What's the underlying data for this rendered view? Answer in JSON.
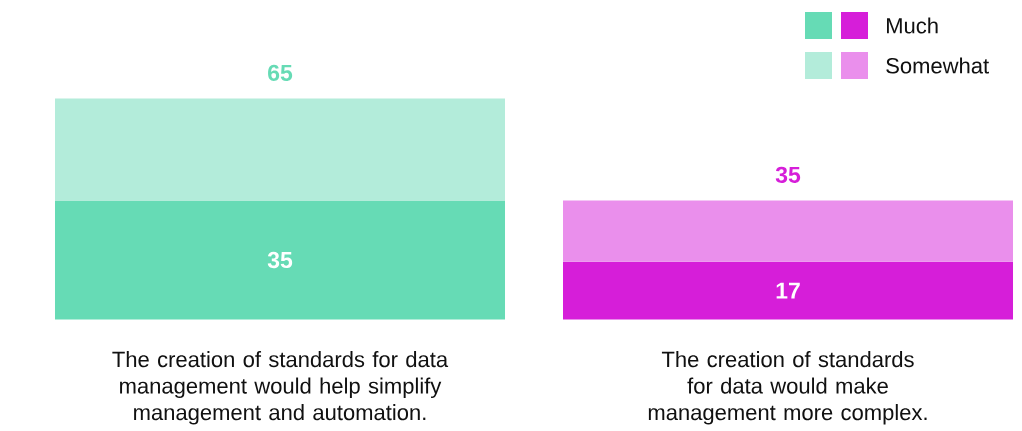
{
  "chart_data": {
    "type": "bar",
    "stacked": true,
    "categories": [
      "The creation of standards for data management would help simplify management and automation.",
      "The creation of standards for data would make management more complex."
    ],
    "series": [
      {
        "name": "Much",
        "colors": [
          "#66dbb5",
          "#d61ed9"
        ],
        "values": [
          35,
          17
        ],
        "value_labels": [
          "35",
          "17"
        ]
      },
      {
        "name": "Somewhat",
        "colors": [
          "#b3ecda",
          "#ea8fec"
        ],
        "values": [
          30,
          18
        ]
      }
    ],
    "totals": [
      "65",
      "35"
    ],
    "legend": "top right"
  }
}
